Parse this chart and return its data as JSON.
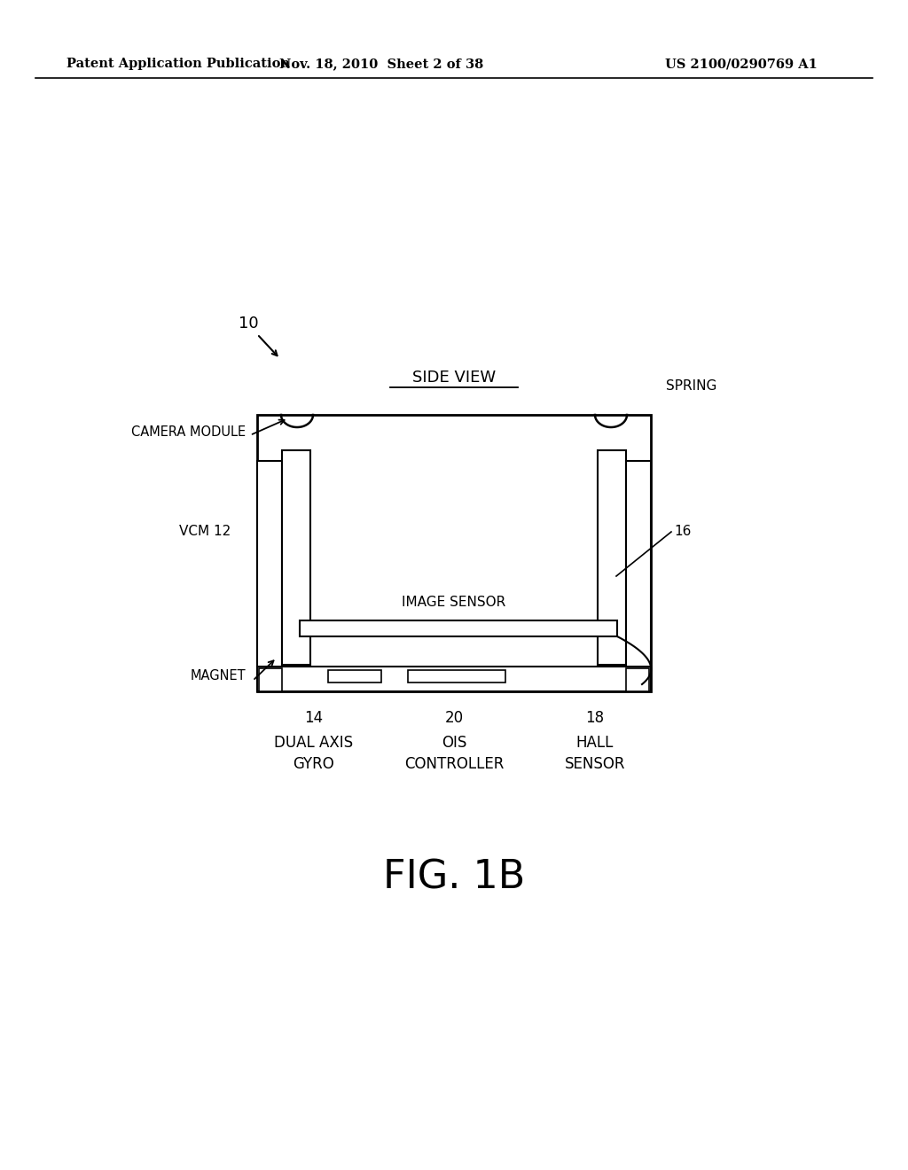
{
  "bg_color": "#ffffff",
  "header_left": "Patent Application Publication",
  "header_mid": "Nov. 18, 2010  Sheet 2 of 38",
  "header_right": "US 2100/0290769 A1",
  "fig_label": "FIG. 1B",
  "side_view_label": "SIDE VIEW",
  "diagram_num": "10",
  "vcm_label": "VCM 12",
  "camera_module_label": "CAMERA MODULE",
  "magnet_label": "MAGNET",
  "image_sensor_label": "IMAGE SENSOR",
  "spring_label": "SPRING",
  "ref16_label": "16",
  "bottom_labels": [
    {
      "num": "14",
      "line1": "DUAL AXIS",
      "line2": "GYRO",
      "xf": 0.345
    },
    {
      "num": "20",
      "line1": "OIS",
      "line2": "CONTROLLER",
      "xf": 0.5
    },
    {
      "num": "18",
      "line1": "HALL",
      "line2": "SENSOR",
      "xf": 0.655
    }
  ]
}
